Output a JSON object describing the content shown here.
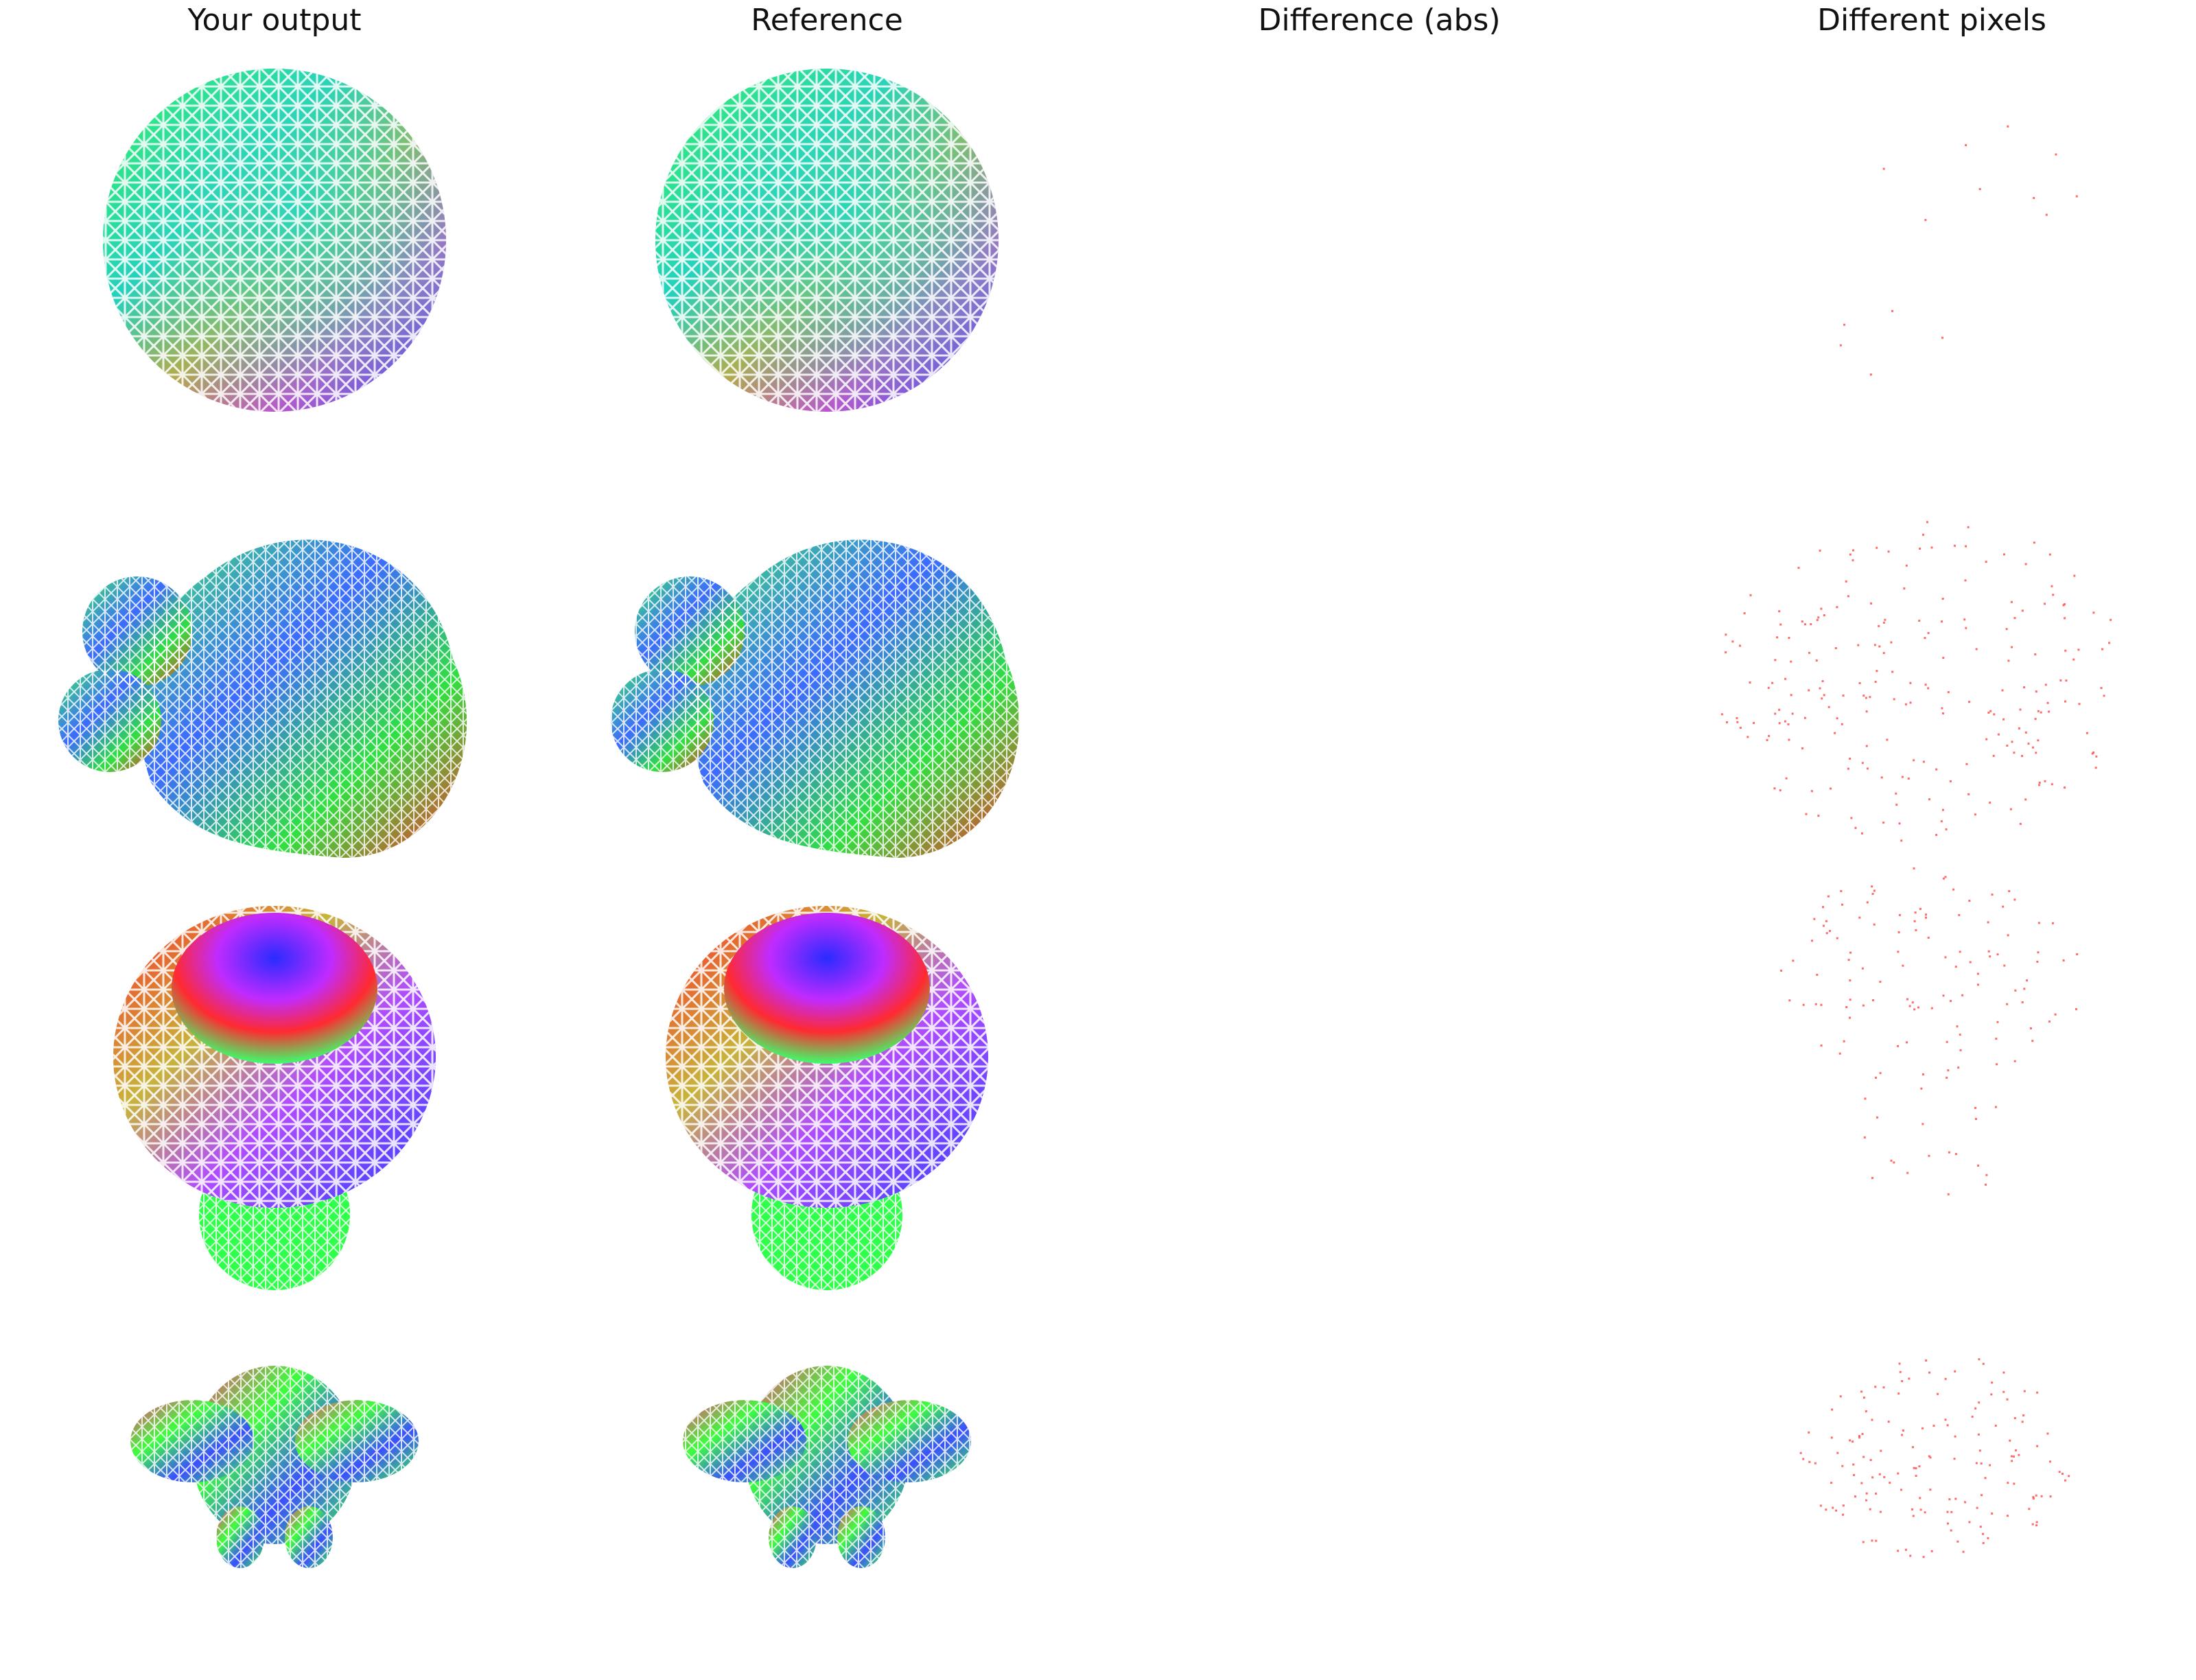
{
  "columns": [
    {
      "title": "Your output"
    },
    {
      "title": "Reference"
    },
    {
      "title": "Difference (abs)"
    },
    {
      "title": "Different pixels"
    }
  ],
  "rows": [
    {
      "shape": "sphere"
    },
    {
      "shape": "blob"
    },
    {
      "shape": "bowl"
    },
    {
      "shape": "creature"
    }
  ],
  "colors": {
    "background": "#ffffff",
    "diff_dot": "#ff3b3b",
    "wire": "#ffffff"
  }
}
